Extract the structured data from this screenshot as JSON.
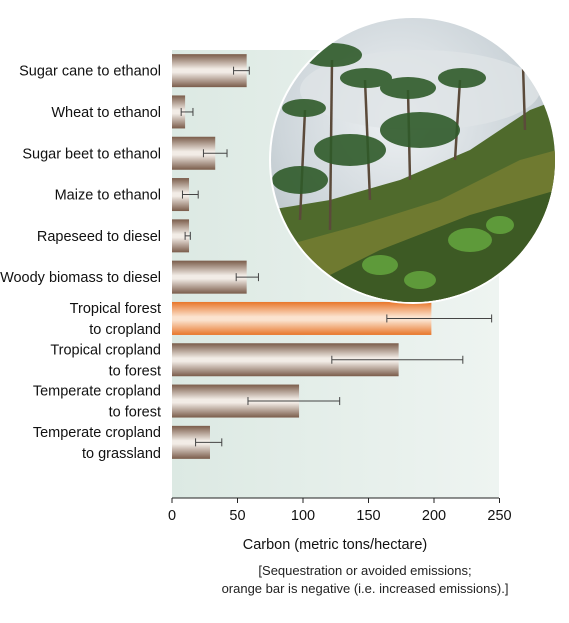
{
  "chart_data": {
    "type": "bar",
    "orientation": "horizontal",
    "categories": [
      [
        "Sugar cane to ethanol"
      ],
      [
        "Wheat to ethanol"
      ],
      [
        "Sugar beet to ethanol"
      ],
      [
        "Maize to ethanol"
      ],
      [
        "Rapeseed to diesel"
      ],
      [
        "Woody biomass to diesel"
      ],
      [
        "Tropical forest",
        "to cropland"
      ],
      [
        "Tropical cropland",
        "to forest"
      ],
      [
        "Temperate cropland",
        "to forest"
      ],
      [
        "Temperate cropland",
        "to grassland"
      ]
    ],
    "values": [
      57,
      10,
      33,
      13,
      13,
      57,
      198,
      173,
      97,
      29
    ],
    "error_low": [
      47,
      7,
      24,
      8,
      10,
      49,
      164,
      122,
      58,
      18
    ],
    "error_high": [
      59,
      16,
      42,
      20,
      14,
      66,
      244,
      222,
      128,
      38
    ],
    "highlight_index": 6,
    "xlabel": "Carbon (metric tons/hectare)",
    "xlim": [
      0,
      250
    ],
    "xticks": [
      0,
      50,
      100,
      150,
      200,
      250
    ],
    "caption": [
      "[Sequestration or avoided emissions;",
      "orange bar is negative (i.e. increased emissions).]"
    ],
    "colors": {
      "bar": "#8c6e5c",
      "bar_highlight": "#f0883e",
      "background": "#e2ede8",
      "axis": "#222222",
      "error_bar": "#444444"
    }
  }
}
